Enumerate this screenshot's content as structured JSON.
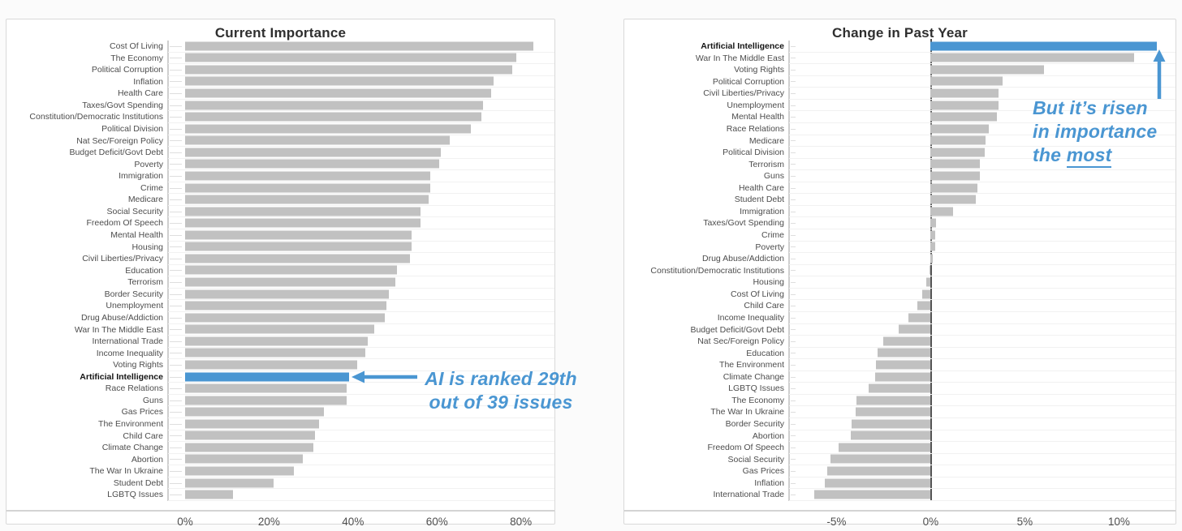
{
  "page": {
    "background": "#fbfbfb",
    "card_background": "#ffffff",
    "card_border": "#d9d9d9"
  },
  "chart_data": [
    {
      "type": "bar",
      "orientation": "horizontal",
      "title": "Current Importance",
      "xlabel": "",
      "ylabel": "",
      "unit": "%",
      "bar_color": "#c1c1c1",
      "highlight_color": "#4a96d2",
      "grid": "horizontal row lines, light gray",
      "axis": {
        "min": 0,
        "max": 88,
        "tick_values": [
          0,
          20,
          40,
          60,
          80
        ],
        "tick_labels": [
          "0%",
          "20%",
          "40%",
          "60%",
          "80%"
        ]
      },
      "highlight_index": 28,
      "highlight_category": "Artificial Intelligence",
      "categories": [
        "Cost Of Living",
        "The Economy",
        "Political Corruption",
        "Inflation",
        "Health Care",
        "Taxes/Govt Spending",
        "Constitution/Democratic Institutions",
        "Political Division",
        "Nat Sec/Foreign Policy",
        "Budget Deficit/Govt Debt",
        "Poverty",
        "Immigration",
        "Crime",
        "Medicare",
        "Social Security",
        "Freedom Of Speech",
        "Mental Health",
        "Housing",
        "Civil Liberties/Privacy",
        "Education",
        "Terrorism",
        "Border Security",
        "Unemployment",
        "Drug Abuse/Addiction",
        "War In The Middle East",
        "International Trade",
        "Income Inequality",
        "Voting Rights",
        "Artificial Intelligence",
        "Race Relations",
        "Guns",
        "Gas Prices",
        "The Environment",
        "Child Care",
        "Climate Change",
        "Abortion",
        "The War In Ukraine",
        "Student Debt",
        "LGBTQ Issues"
      ],
      "values": [
        83,
        79,
        78,
        73.5,
        73,
        71,
        70.5,
        68,
        63,
        61,
        60.5,
        58.5,
        58.5,
        58,
        56,
        56,
        54,
        54,
        53.5,
        50.5,
        50,
        48.5,
        48,
        47.5,
        45,
        43.5,
        43,
        41,
        39,
        38.5,
        38.5,
        33,
        32,
        31,
        30.5,
        28,
        26,
        21,
        11.5
      ],
      "annotation": {
        "lines": [
          "AI is ranked 29th",
          "out of 39 issues"
        ],
        "color": "#4a96d2",
        "arrow_direction": "left"
      }
    },
    {
      "type": "bar",
      "orientation": "horizontal",
      "title": "Change in Past Year",
      "xlabel": "",
      "ylabel": "",
      "unit": "%",
      "bar_color": "#c1c1c1",
      "highlight_color": "#4a96d2",
      "grid": "horizontal row lines, light gray; dark vertical zero line",
      "axis": {
        "min": -7,
        "max": 13,
        "tick_values": [
          -5,
          0,
          5,
          10
        ],
        "tick_labels": [
          "-5%",
          "0%",
          "5%",
          "10%"
        ]
      },
      "highlight_index": 0,
      "highlight_category": "Artificial Intelligence",
      "categories": [
        "Artificial Intelligence",
        "War In The Middle East",
        "Voting Rights",
        "Political Corruption",
        "Civil Liberties/Privacy",
        "Unemployment",
        "Mental Health",
        "Race Relations",
        "Medicare",
        "Political Division",
        "Terrorism",
        "Guns",
        "Health Care",
        "Student Debt",
        "Immigration",
        "Taxes/Govt Spending",
        "Crime",
        "Poverty",
        "Drug Abuse/Addiction",
        "Constitution/Democratic Institutions",
        "Housing",
        "Cost Of Living",
        "Child Care",
        "Income Inequality",
        "Budget Deficit/Govt Debt",
        "Nat Sec/Foreign Policy",
        "Education",
        "The Environment",
        "Climate Change",
        "LGBTQ Issues",
        "The Economy",
        "The War In Ukraine",
        "Border Security",
        "Abortion",
        "Freedom Of Speech",
        "Social Security",
        "Gas Prices",
        "Inflation",
        "International Trade"
      ],
      "values": [
        12,
        10.8,
        6,
        3.8,
        3.6,
        3.6,
        3.5,
        3.1,
        2.9,
        2.85,
        2.6,
        2.6,
        2.5,
        2.4,
        1.2,
        0.3,
        0.25,
        0.25,
        0.1,
        -0.05,
        -0.25,
        -0.45,
        -0.7,
        -1.2,
        -1.7,
        -2.5,
        -2.8,
        -2.9,
        -2.95,
        -3.3,
        -3.95,
        -4,
        -4.2,
        -4.25,
        -4.9,
        -5.3,
        -5.5,
        -5.6,
        -6.2
      ],
      "annotation": {
        "lines": [
          "But it’s risen",
          "in importance"
        ],
        "last_line_prefix": "the ",
        "underlined_word": "most",
        "color": "#4a96d2",
        "arrow_direction": "up"
      }
    }
  ]
}
